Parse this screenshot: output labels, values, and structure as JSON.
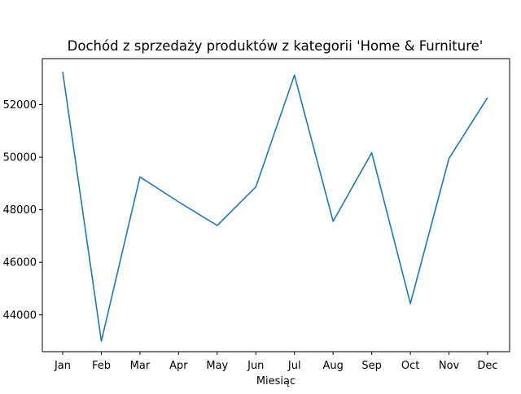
{
  "chart_data": {
    "type": "line",
    "title": "Dochód z sprzedaży produktów z kategorii 'Home & Furniture'",
    "xlabel": "Miesiąc",
    "ylabel": "",
    "categories": [
      "Jan",
      "Feb",
      "Mar",
      "Apr",
      "May",
      "Jun",
      "Jul",
      "Aug",
      "Sep",
      "Oct",
      "Nov",
      "Dec"
    ],
    "series": [
      {
        "values": [
          53250,
          43000,
          49250,
          48300,
          47400,
          48870,
          53120,
          47560,
          50170,
          44430,
          49950,
          52270
        ]
      }
    ],
    "yticks": [
      44000,
      46000,
      48000,
      50000,
      52000
    ],
    "ytick_labels": [
      "44000",
      "46000",
      "48000",
      "50000",
      "52000"
    ],
    "ylim": [
      42600,
      53750
    ],
    "grid": false,
    "colors": {
      "line": "#1f77b4",
      "axes": "#000000",
      "background": "#ffffff"
    }
  }
}
